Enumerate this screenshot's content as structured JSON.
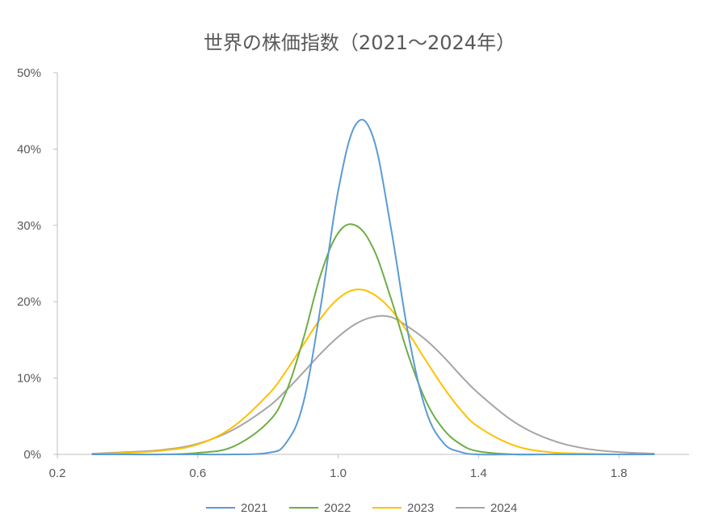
{
  "chart_data": {
    "type": "line",
    "title": "世界の株価指数（2021〜2024年）",
    "xlabel": "",
    "ylabel": "",
    "xlim": [
      0.2,
      2.0
    ],
    "ylim": [
      0,
      50
    ],
    "x_ticks": [
      0.2,
      0.6,
      1.0,
      1.4,
      1.8
    ],
    "x_tick_labels": [
      "0.2",
      "0.6",
      "1.0",
      "1.4",
      "1.8"
    ],
    "y_ticks": [
      0,
      10,
      20,
      30,
      40,
      50
    ],
    "y_tick_labels": [
      "0%",
      "10%",
      "20%",
      "30%",
      "40%",
      "50%"
    ],
    "grid": false,
    "legend_position": "bottom",
    "x": [
      0.3,
      0.4,
      0.5,
      0.6,
      0.7,
      0.8,
      0.85,
      0.9,
      0.95,
      1.0,
      1.05,
      1.1,
      1.15,
      1.2,
      1.25,
      1.3,
      1.35,
      1.4,
      1.5,
      1.6,
      1.7,
      1.8,
      1.9
    ],
    "series": [
      {
        "name": "2021",
        "color": "#5B9BD5",
        "values": [
          0,
          0,
          0,
          0,
          0,
          0.2,
          1.4,
          6.6,
          19.3,
          34.5,
          43.2,
          41.5,
          29.8,
          15.7,
          5.8,
          1.5,
          0.3,
          0,
          0,
          0,
          0,
          0,
          0
        ]
      },
      {
        "name": "2022",
        "color": "#70AD47",
        "values": [
          0,
          0,
          0,
          0.2,
          1.0,
          4.2,
          8.0,
          15.0,
          23.5,
          29.0,
          30.0,
          27.0,
          20.5,
          13.0,
          7.0,
          3.3,
          1.3,
          0.4,
          0,
          0,
          0,
          0,
          0
        ]
      },
      {
        "name": "2023",
        "color": "#FFC000",
        "values": [
          0,
          0.2,
          0.5,
          1.3,
          3.6,
          7.8,
          10.8,
          14.3,
          17.8,
          20.4,
          21.6,
          21.0,
          19.0,
          15.9,
          12.3,
          8.8,
          5.8,
          3.6,
          1.2,
          0.3,
          0.1,
          0,
          0
        ]
      },
      {
        "name": "2024",
        "color": "#A5A5A5",
        "values": [
          0.1,
          0.3,
          0.6,
          1.4,
          3.2,
          6.2,
          8.3,
          10.7,
          13.2,
          15.4,
          17.1,
          18.0,
          18.0,
          16.7,
          15.0,
          12.8,
          10.3,
          8.0,
          4.3,
          2.0,
          0.8,
          0.3,
          0.1
        ]
      }
    ]
  }
}
